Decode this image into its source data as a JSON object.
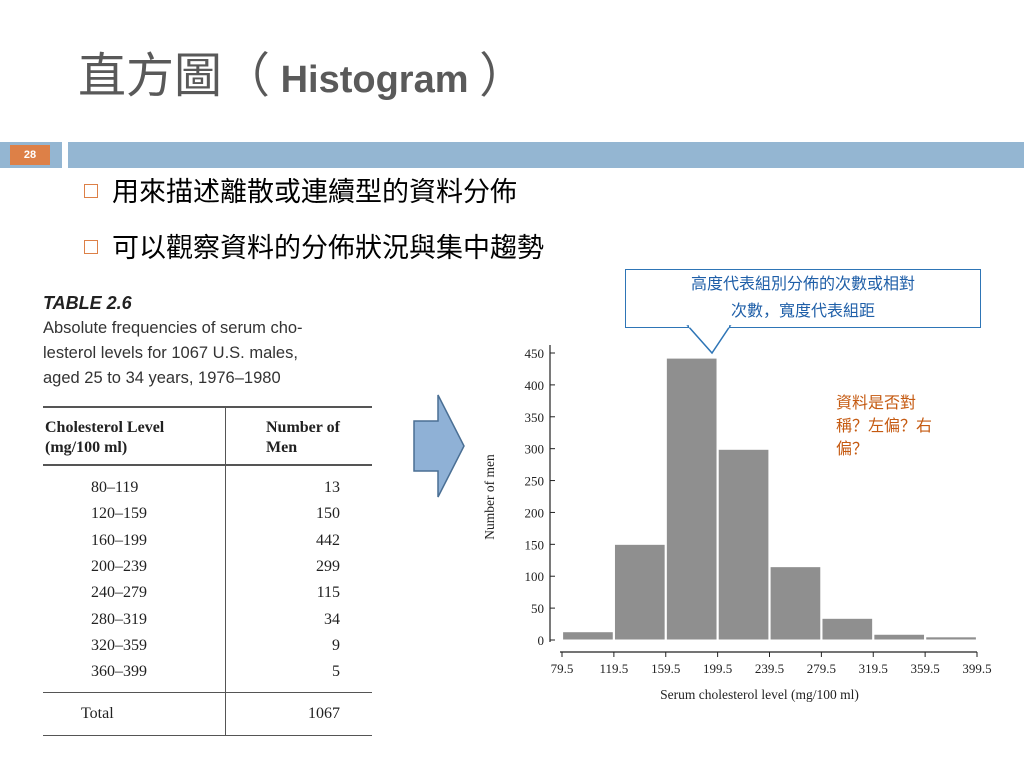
{
  "slide": {
    "title_cjk": "直方圖（",
    "title_latin": " Histogram ",
    "title_close": "）",
    "number": "28"
  },
  "bullets": [
    "用來描述離散或連續型的資料分佈",
    "可以觀察資料的分佈狀況與集中趨勢"
  ],
  "callout": {
    "line1": "高度代表組別分佈的次數或相對",
    "line2": "次數，寬度代表組距"
  },
  "note": {
    "line1": "資料是否對",
    "line2": "稱？左偏？右",
    "line3": "偏？"
  },
  "table": {
    "title": "TABLE 2.6",
    "caption_lines": [
      "Absolute frequencies of serum cho-",
      "lesterol levels for 1067 U.S. males,",
      "aged 25 to 34 years, 1976–1980"
    ],
    "header_col1_line1": "Cholesterol Level",
    "header_col1_line2": "(mg/100 ml)",
    "header_col2_line1": "Number of",
    "header_col2_line2": "Men",
    "rows": [
      {
        "level": "80–119",
        "count": "13"
      },
      {
        "level": "120–159",
        "count": "150"
      },
      {
        "level": "160–199",
        "count": "442"
      },
      {
        "level": "200–239",
        "count": "299"
      },
      {
        "level": "240–279",
        "count": "115"
      },
      {
        "level": "280–319",
        "count": "34"
      },
      {
        "level": "320–359",
        "count": "9"
      },
      {
        "level": "360–399",
        "count": "5"
      }
    ],
    "total_label": "Total",
    "total_value": "1067"
  },
  "colors": {
    "accent_orange": "#dd8047",
    "band_blue": "#94b6d2",
    "callout_blue": "#2e75b6",
    "note_orange": "#c55a11",
    "bar_gray": "#8f8f8f",
    "arrow_fill": "#8fb1d6"
  },
  "icons": {
    "bullet": "square-bullet-icon",
    "arrow": "right-arrow-icon"
  },
  "chart_data": {
    "type": "bar",
    "bin_edges": [
      79.5,
      119.5,
      159.5,
      199.5,
      239.5,
      279.5,
      319.5,
      359.5,
      399.5
    ],
    "x_tick_labels": [
      "79.5",
      "119.5",
      "159.5",
      "199.5",
      "239.5",
      "279.5",
      "319.5",
      "359.5",
      "399.5"
    ],
    "values": [
      13,
      150,
      442,
      299,
      115,
      34,
      9,
      5
    ],
    "y_ticks": [
      "0",
      "50",
      "100",
      "150",
      "200",
      "250",
      "300",
      "350",
      "400",
      "450"
    ],
    "ylim": [
      0,
      450
    ],
    "xlabel": "Serum cholesterol level (mg/100 ml)",
    "ylabel": "Number of men",
    "grid": false
  }
}
